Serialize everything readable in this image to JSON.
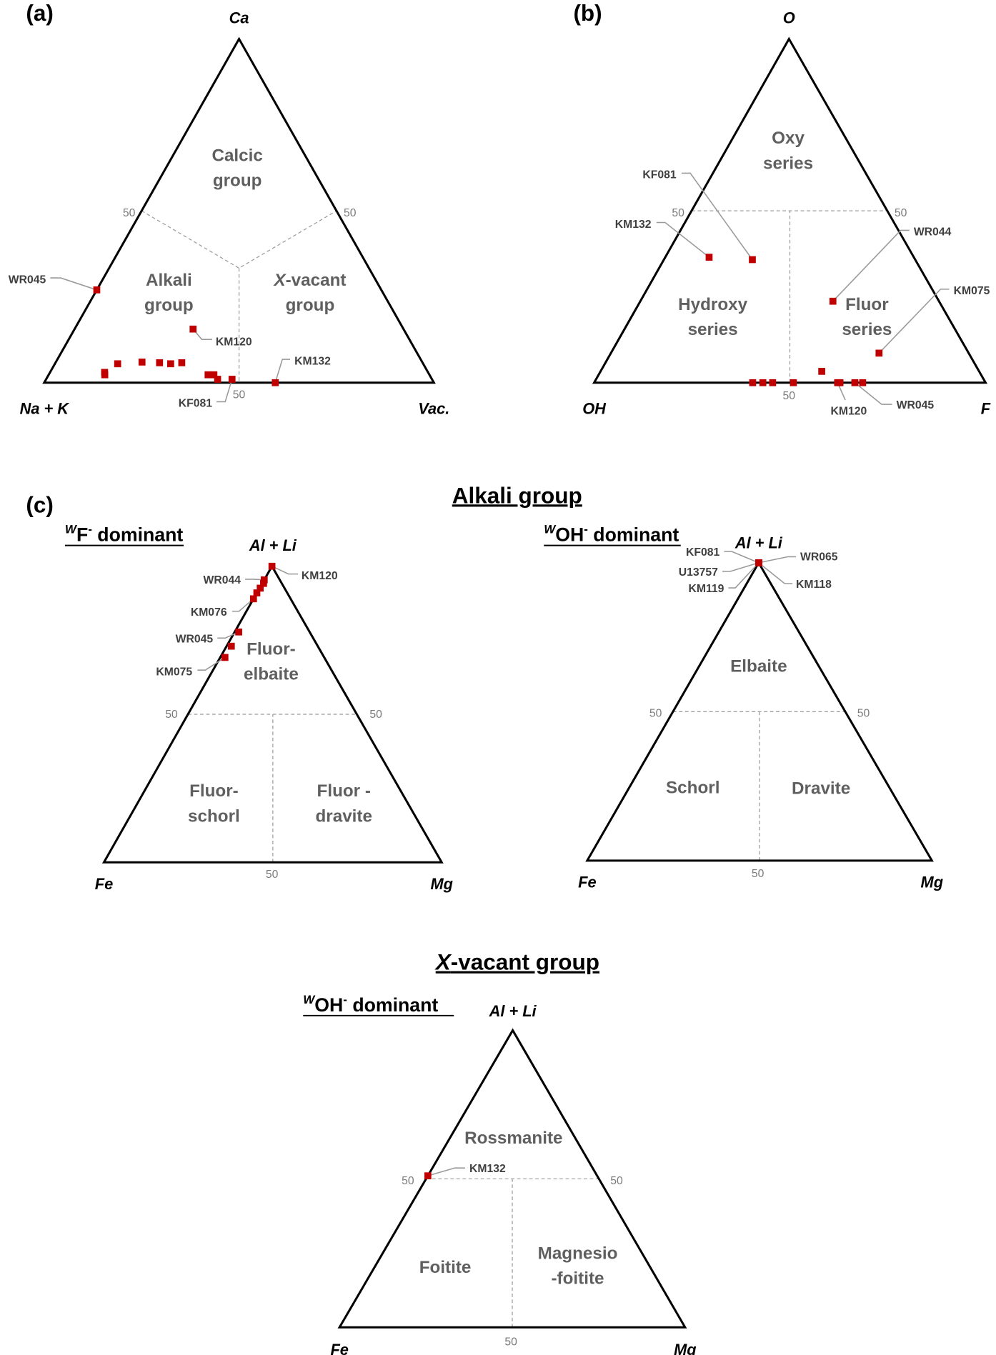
{
  "marker_color": "#c00000",
  "headings": {
    "alkali": "Alkali group",
    "xvacant_italic": "X",
    "xvacant_rest": "-vacant group"
  },
  "subheadings": {
    "wf": {
      "sup": "W",
      "main": "F",
      "sup2": "-",
      "rest": " dominant"
    },
    "woh1": {
      "sup": "W",
      "main": "OH",
      "sup2": "-",
      "rest": " dominant"
    },
    "woh2": {
      "sup": "W",
      "main": "OH",
      "sup2": "-",
      "rest": " dominant"
    }
  },
  "panels": [
    {
      "id": "a",
      "panel_label": "(a)",
      "vertices": {
        "top": "Ca",
        "left": "Na + K",
        "right": "Vac."
      },
      "ticks": [
        "50",
        "50",
        "50"
      ],
      "regions": [
        {
          "lines": [
            "Calcic",
            "group"
          ]
        },
        {
          "lines": [
            "Alkali",
            "group"
          ]
        },
        {
          "italic_prefix": "X",
          "lines": [
            "-vacant",
            "group"
          ]
        }
      ],
      "points": [
        {
          "label": "WR045",
          "top": 27,
          "left": 73,
          "right": 0
        },
        {
          "label": "KM120",
          "top": 15.6,
          "left": 54,
          "right": 30.4
        },
        {
          "top": 2.3,
          "left": 83.3,
          "right": 14.4
        },
        {
          "top": 3,
          "left": 83,
          "right": 14
        },
        {
          "top": 5.5,
          "left": 78.4,
          "right": 16.1
        },
        {
          "top": 6,
          "left": 71.9,
          "right": 22.1
        },
        {
          "top": 5.8,
          "left": 67.5,
          "right": 26.7
        },
        {
          "top": 5.5,
          "left": 64.8,
          "right": 29.7
        },
        {
          "top": 5.8,
          "left": 61.8,
          "right": 32.4
        },
        {
          "top": 2.3,
          "left": 56.8,
          "right": 40.9
        },
        {
          "top": 2.3,
          "left": 55.3,
          "right": 42.4
        },
        {
          "top": 1,
          "left": 55,
          "right": 44
        },
        {
          "label": "KF081",
          "top": 1,
          "left": 51.3,
          "right": 47.7
        },
        {
          "label": "KM132",
          "top": 0,
          "left": 40.7,
          "right": 59.3
        }
      ]
    },
    {
      "id": "b",
      "panel_label": "(b)",
      "vertices": {
        "top": "O",
        "left": "OH",
        "right": "F"
      },
      "ticks": [
        "50",
        "50",
        "50"
      ],
      "regions": [
        {
          "lines": [
            "Oxy",
            "series"
          ]
        },
        {
          "lines": [
            "Hydroxy",
            "series"
          ]
        },
        {
          "lines": [
            "Fluor",
            "series"
          ]
        }
      ],
      "points": [
        {
          "label": "KM132",
          "top": 36.5,
          "left": 52.3,
          "right": 11.2
        },
        {
          "label": "KF081",
          "top": 35.8,
          "left": 41.6,
          "right": 22.6
        },
        {
          "label": "WR044",
          "top": 23.7,
          "left": 27.1,
          "right": 49.2
        },
        {
          "label": "KM075",
          "top": 8.6,
          "left": 22.9,
          "right": 68.5
        },
        {
          "top": 3.3,
          "left": 40.2,
          "right": 56.5
        },
        {
          "top": 0,
          "left": 59.5,
          "right": 40.5
        },
        {
          "top": 0,
          "left": 56.9,
          "right": 43.1
        },
        {
          "top": 0,
          "left": 54.4,
          "right": 45.6
        },
        {
          "top": 0,
          "left": 49.1,
          "right": 50.9
        },
        {
          "label": "KM120",
          "top": 0,
          "left": 37.8,
          "right": 62.2
        },
        {
          "top": 0,
          "left": 37.2,
          "right": 62.8
        },
        {
          "label": "WR045",
          "top": 0,
          "left": 33.4,
          "right": 66.6
        },
        {
          "top": 0,
          "left": 31.4,
          "right": 68.6
        }
      ]
    },
    {
      "id": "c1",
      "panel_label": "(c)",
      "vertices": {
        "top": "Al + Li",
        "left": "Fe",
        "right": "Mg"
      },
      "ticks": [
        "50",
        "50",
        "50"
      ],
      "regions": [
        {
          "lines": [
            "Fluor-",
            "elbaite"
          ]
        },
        {
          "lines": [
            "Fluor-",
            "schorl"
          ]
        },
        {
          "lines": [
            "Fluor -",
            "dravite"
          ]
        }
      ],
      "points": [
        {
          "label": "KM120",
          "top": 100,
          "left": 0,
          "right": 0
        },
        {
          "label": "WR044",
          "top": 95.4,
          "left": 4.6,
          "right": 0
        },
        {
          "top": 94.2,
          "left": 5.4,
          "right": 0.4
        },
        {
          "top": 92.6,
          "left": 7.2,
          "right": 0.2
        },
        {
          "top": 91,
          "left": 9,
          "right": 0
        },
        {
          "label": "KM076",
          "top": 89,
          "left": 11,
          "right": 0
        },
        {
          "label": "WR045",
          "top": 77.8,
          "left": 21,
          "right": 1.2
        },
        {
          "top": 73,
          "left": 25.6,
          "right": 1.4
        },
        {
          "label": "KM075",
          "top": 69.2,
          "left": 29.4,
          "right": 1.4
        }
      ]
    },
    {
      "id": "c2",
      "vertices": {
        "top": "Al + Li",
        "left": "Fe",
        "right": "Mg"
      },
      "ticks": [
        "50",
        "50",
        "50"
      ],
      "regions": [
        {
          "lines": [
            "Elbaite"
          ]
        },
        {
          "lines": [
            "Schorl"
          ]
        },
        {
          "lines": [
            "Dravite"
          ]
        }
      ],
      "points": [
        {
          "label": "KF081",
          "top": 100,
          "left": 0,
          "right": 0
        },
        {
          "label": "WR065",
          "top": 100,
          "left": 0,
          "right": 0
        },
        {
          "label": "U13757",
          "top": 100,
          "left": 0,
          "right": 0
        },
        {
          "label": "KM119",
          "top": 100,
          "left": 0,
          "right": 0
        },
        {
          "label": "KM118",
          "top": 100,
          "left": 0,
          "right": 0
        }
      ]
    },
    {
      "id": "c3",
      "vertices": {
        "top": "Al + Li",
        "left": "Fe",
        "right": "Mg"
      },
      "ticks": [
        "50",
        "50",
        "50"
      ],
      "regions": [
        {
          "lines": [
            "Rossmanite"
          ]
        },
        {
          "lines": [
            "Foitite"
          ]
        },
        {
          "lines": [
            "Magnesio",
            "-foitite"
          ]
        }
      ],
      "points": [
        {
          "label": "KM132",
          "top": 51,
          "left": 49,
          "right": 0
        }
      ]
    }
  ]
}
